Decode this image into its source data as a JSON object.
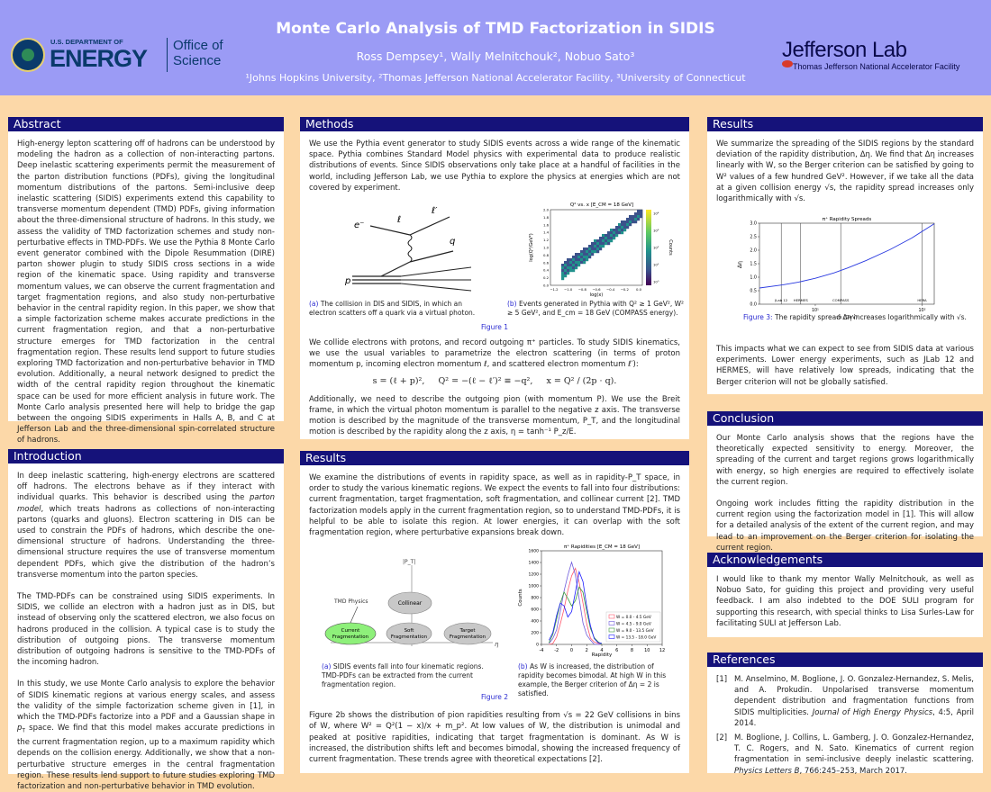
{
  "header": {
    "title": "Monte Carlo Analysis of TMD Factorization in SIDIS",
    "authors": "Ross Dempsey¹, Wally Melnitchouk², Nobuo Sato³",
    "affiliations": "¹Johns Hopkins University, ²Thomas Jefferson National Accelerator Facility, ³University of Connecticut",
    "left_logo": {
      "line1": "U.S. DEPARTMENT OF",
      "line2": "ENERGY",
      "line3": "Office of",
      "line4": "Science"
    },
    "right_logo": {
      "name": "Jefferson Lab",
      "sub": "Thomas Jefferson National Accelerator Facility"
    }
  },
  "abstract": {
    "title": "Abstract",
    "text": "High-energy lepton scattering off of hadrons can be understood by modeling the hadron as a collection of non-interacting partons. Deep inelastic scattering experiments permit the measurement of the parton distribution functions (PDFs), giving the longitudinal momentum distributions of the partons. Semi-inclusive deep inelastic scattering (SIDIS) experiments extend this capability to transverse momentum dependent (TMD) PDFs, giving information about the three-dimensional structure of hadrons. In this study, we assess the validity of TMD factorization schemes and study non-perturbative effects in TMD-PDFs. We use the Pythia 8 Monte Carlo event generator combined with the Dipole Resummation (DIRE) parton shower plugin to study SIDIS cross sections in a wide region of the kinematic space. Using rapidity and transverse momentum values, we can observe the current fragmentation and target fragmentation regions, and also study non-perturbative behavior in the central rapidity region. In this paper, we show that a simple factorization scheme makes accurate predictions in the current fragmentation region, and that a non-perturbative structure emerges for TMD factorization in the central fragmentation region. These results lend support to future studies exploring TMD factorization and non-perturbative behavior in TMD evolution. Additionally, a neural network designed to predict the width of the central rapidity region throughout the kinematic space can be used for more efficient analysis in future work. The Monte Carlo analysis presented here will help to bridge the gap between the ongoing SIDIS experiments in Halls A, B, and C at Jefferson Lab and the three-dimensional spin-correlated structure of hadrons."
  },
  "intro": {
    "title": "Introduction",
    "p1a": "In deep inelastic scattering, high-energy electrons are scattered off hadrons. The electrons behave as if they interact with individual quarks. This behavior is described using the ",
    "p1em": "parton model",
    "p1b": ", which treats hadrons as collections of non-interacting partons (quarks and gluons). Electron scattering in DIS can be used to constrain the PDFs of hadrons, which describe the one-dimensional structure of hadrons. Understanding the three-dimensional structure requires the use of transverse momentum dependent PDFs, which give the distribution of the hadron’s transverse momentum into the parton species.",
    "p2": "The TMD-PDFs can be constrained using SIDIS experiments. In SIDIS, we collide an electron with a hadron just as in DIS, but instead of observing only the scattered electron, we also focus on hadrons produced in the collision. A typical case is to study the distribution of outgoing pions. The transverse momentum distribution of outgoing hadrons is sensitive to the TMD-PDFs of the incoming hadron.",
    "p3a": "In this study, we use Monte Carlo analysis to explore the behavior of SIDIS kinematic regions at various energy scales, and assess the validity of the simple factorization scheme given in [1], in which the TMD-PDFs factorize into a PDF and a Gaussian shape in ",
    "p3var": "p",
    "p3sub": "T",
    "p3b": " space. We find that this model makes accurate predictions in the current fragmentation region, up to a maximum rapidity which depends on the collision energy. Additionally, we show that a non-perturbative structure emerges in the central fragmentation region. These results lend support to future studies exploring TMD factorization and non-perturbative behavior in TMD evolution."
  },
  "methods": {
    "title": "Methods",
    "p1": "We use the Pythia event generator to study SIDIS events across a wide range of the kinematic space. Pythia combines Standard Model physics with experimental data to produce realistic distributions of events. Since SIDIS observations only take place at a handful of facilities in the world, including Jefferson Lab, we use Pythia to explore the physics at energies which are not covered by experiment.",
    "fig1a_label": "(a)",
    "fig1a_cap": "The collision in DIS and SIDIS, in which an electron scatters off a quark via a virtual photon.",
    "fig1b_label": "(b)",
    "fig1b_cap": "Events generated in Pythia with Q² ≥ 1 GeV², W² ≥ 5 GeV², and E_cm = 18 GeV (COMPASS energy).",
    "fig1_label": "Figure 1",
    "feyn": {
      "e": "e⁻",
      "l": "ℓ",
      "lp": "ℓ′",
      "q": "q",
      "p": "p"
    },
    "p2": "We collide electrons with protons, and record outgoing π⁺ particles. To study SIDIS kinematics, we use the usual variables to parametrize the electron scattering (in terms of proton momentum p, incoming electron momentum ℓ, and scattered electron momentum ℓ′):",
    "eq1": "s = (ℓ + p)²,",
    "eq2": "Q² = −(ℓ − ℓ′)² ≡ −q²,",
    "eq3": "x = Q² / (2p · q).",
    "p3": "Additionally, we need to describe the outgoing pion (with momentum P). We use the Breit frame, in which the virtual photon momentum is parallel to the negative z axis. The transverse motion is described by the magnitude of the transverse momentum, P_T, and the longitudinal motion is described by the rapidity along the z axis, η = tanh⁻¹ P_z/E."
  },
  "results_mid": {
    "title": "Results",
    "p1": "We examine the distributions of events in rapidity space, as well as in rapidity-P_T space, in order to study the various kinematic regions. We expect the events to fall into four distributions: current fragmentation, target fragmentation, soft fragmentation, and collinear current [2]. TMD factorization models apply in the current fragmentation region, so to understand TMD-PDFs, it is helpful to be able to isolate this region. At lower energies, it can overlap with the soft fragmentation region, where perturbative expansions break down.",
    "fig2a_label": "(a)",
    "fig2a_cap": "SIDIS events fall into four kinematic regions. TMD-PDFs can be extracted from the current fragmentation region.",
    "fig2b_label": "(b)",
    "fig2b_cap": "As W is increased, the distribution of rapidity becomes bimodal. At high W in this example, the Berger criterion of Δη = 2 is satisfied.",
    "fig2_label": "Figure 2",
    "regions": {
      "pt": "|P_T|",
      "eta": "η",
      "tmd": "TMD Physics",
      "collinear": "Collinear",
      "current": "Current\nFragmentation",
      "soft": "Soft\nFragmentation",
      "target": "Target\nFragmentation"
    },
    "p2": "Figure 2b shows the distribution of pion rapidities resulting from √s = 22 GeV collisions in bins of W, where W² = Q²(1 − x)/x + m_p². At low values of W, the distribution is unimodal and peaked at positive rapidities, indicating that target fragmentation is dominant. As W is increased, the distribution shifts left and becomes bimodal, showing the increased frequency of current fragmentation. These trends agree with theoretical expectations [2]."
  },
  "results_right": {
    "title": "Results",
    "p1": "We summarize the spreading of the SIDIS regions by the standard deviation of the rapidity distribution, Δη. We find that Δη increases linearly with W, so the Berger criterion can be satisfied by going to W² values of a few hundred GeV². However, if we take all the data at a given collision energy √s, the rapidity spread increases only logarithmically with √s.",
    "fig3_label": "Figure 3:",
    "fig3_cap": "The rapidity spread Δη increases logarithmically with √s.",
    "p2": "This impacts what we can expect to see from SIDIS data at various experiments. Lower energy experiments, such as JLab 12 and HERMES, will have relatively low spreads, indicating that the Berger criterion will not be globally satisfied."
  },
  "conclusion": {
    "title": "Conclusion",
    "p1": "Our Monte Carlo analysis shows that the regions have the theoretically expected sensitivity to energy. Moreover, the spreading of the current and target regions grows logarithmically with energy, so high energies are required to effectively isolate the current region.",
    "p2": "Ongoing work includes fitting the rapidity distribution in the current region using the factorization model in [1]. This will allow for a detailed analysis of the extent of the current region, and may lead to an improvement on the Berger criterion for isolating the current region."
  },
  "ack": {
    "title": "Acknowledgements",
    "text": "I would like to thank my mentor Wally Melnitchouk, as well as Nobuo Sato, for guiding this project and providing very useful feedback. I am also indebted to the DOE SULI program for supporting this research, with special thinks to Lisa Surles-Law for facilitating SULI at Jefferson Lab."
  },
  "refs": {
    "title": "References",
    "items": [
      {
        "num": "[1]",
        "main": "M. Anselmino, M. Boglione, J. O. Gonzalez-Hernandez, S. Melis, and A. Prokudin. Unpolarised transverse momentum dependent distribution and fragmentation functions from SIDIS multiplicities. ",
        "journal": "Journal of High Energy Physics",
        "tail": ", 4:5, April 2014."
      },
      {
        "num": "[2]",
        "main": "M. Boglione, J. Collins, L. Gamberg, J. O. Gonzalez-Hernandez, T. C. Rogers, and N. Sato. Kinematics of current region fragmentation in semi-inclusive deeply inelastic scattering. ",
        "journal": "Physics Letters B",
        "tail": ", 766:245–253, March 2017."
      }
    ]
  },
  "chart_data": [
    {
      "type": "heatmap",
      "title": "Q² vs. x [E_CM = 18 GeV]",
      "xlabel": "log(x)",
      "ylabel": "log(Q²/GeV²)",
      "xticks": [
        "−1.2",
        "−1.0",
        "−0.8",
        "−0.6",
        "−0.4",
        "−0.2",
        "0.0"
      ],
      "yticks": [
        "0.0",
        "0.2",
        "0.4",
        "0.6",
        "0.8",
        "1.0",
        "1.2",
        "1.4",
        "1.6",
        "1.8",
        "2.0"
      ],
      "colorbar_label": "Counts",
      "colorbar_ticks": [
        "10⁴",
        "10³",
        "10²",
        "10¹",
        "10⁰"
      ],
      "colorscale": [
        "#fde725",
        "#5ec962",
        "#21918c",
        "#3b528b",
        "#440154"
      ]
    },
    {
      "type": "line",
      "title": "π⁺ Rapidities [E_CM = 18 GeV]",
      "xlabel": "Rapidity",
      "ylabel": "Counts",
      "xlim": [
        -4,
        12
      ],
      "ylim": [
        0,
        1600
      ],
      "xticks": [
        -4,
        -2,
        0,
        2,
        4,
        6,
        8,
        10,
        12
      ],
      "yticks": [
        0,
        200,
        400,
        600,
        800,
        1000,
        1200,
        1400,
        1600
      ],
      "legend_position": "lower-right",
      "x": [
        -3,
        -2.5,
        -2,
        -1.5,
        -1,
        -0.5,
        0,
        0.5,
        1,
        1.5,
        2,
        2.5,
        3,
        3.5,
        4
      ],
      "series": [
        {
          "name": "W = 0.0 - 4.5 GeV",
          "color": "#ff5a6e",
          "values": [
            0,
            20,
            120,
            330,
            620,
            920,
            1160,
            1320,
            1060,
            700,
            330,
            120,
            40,
            10,
            0
          ]
        },
        {
          "name": "W = 4.5 - 9.0 GeV",
          "color": "#6e5adc",
          "values": [
            10,
            80,
            260,
            560,
            900,
            1200,
            1410,
            1180,
            760,
            380,
            160,
            60,
            20,
            5,
            0
          ]
        },
        {
          "name": "W = 9.0 - 13.5 GeV",
          "color": "#3c9a3c",
          "values": [
            40,
            170,
            420,
            720,
            900,
            780,
            640,
            760,
            980,
            880,
            580,
            280,
            110,
            30,
            5
          ]
        },
        {
          "name": "W = 13.5 - 18.0 GeV",
          "color": "#1e1eff",
          "values": [
            60,
            220,
            500,
            700,
            640,
            480,
            560,
            880,
            1260,
            1080,
            640,
            300,
            110,
            30,
            5
          ]
        }
      ]
    },
    {
      "type": "line",
      "title": "π⁺ Rapidity Spreads",
      "xlabel": "√s (GeV)",
      "ylabel": "Δη",
      "xscale": "log",
      "xlim": [
        3,
        130
      ],
      "ylim": [
        0.0,
        3.0
      ],
      "xticks": [
        10,
        100
      ],
      "xtick_labels": [
        "10¹",
        "10²"
      ],
      "yticks": [
        0.0,
        0.5,
        1.0,
        1.5,
        2.0,
        2.5,
        3.0
      ],
      "x": [
        3,
        5,
        7,
        10,
        15,
        20,
        30,
        50,
        80,
        130
      ],
      "values": [
        0.6,
        0.72,
        0.82,
        0.96,
        1.16,
        1.34,
        1.62,
        2.02,
        2.45,
        2.98
      ],
      "line_color": "#2a3ae0",
      "experiments": [
        {
          "name": "JLab 12",
          "x": 4.8
        },
        {
          "name": "HERMES",
          "x": 7.3
        },
        {
          "name": "COMPASS",
          "x": 17.3
        },
        {
          "name": "HERA",
          "x": 100
        }
      ]
    }
  ]
}
